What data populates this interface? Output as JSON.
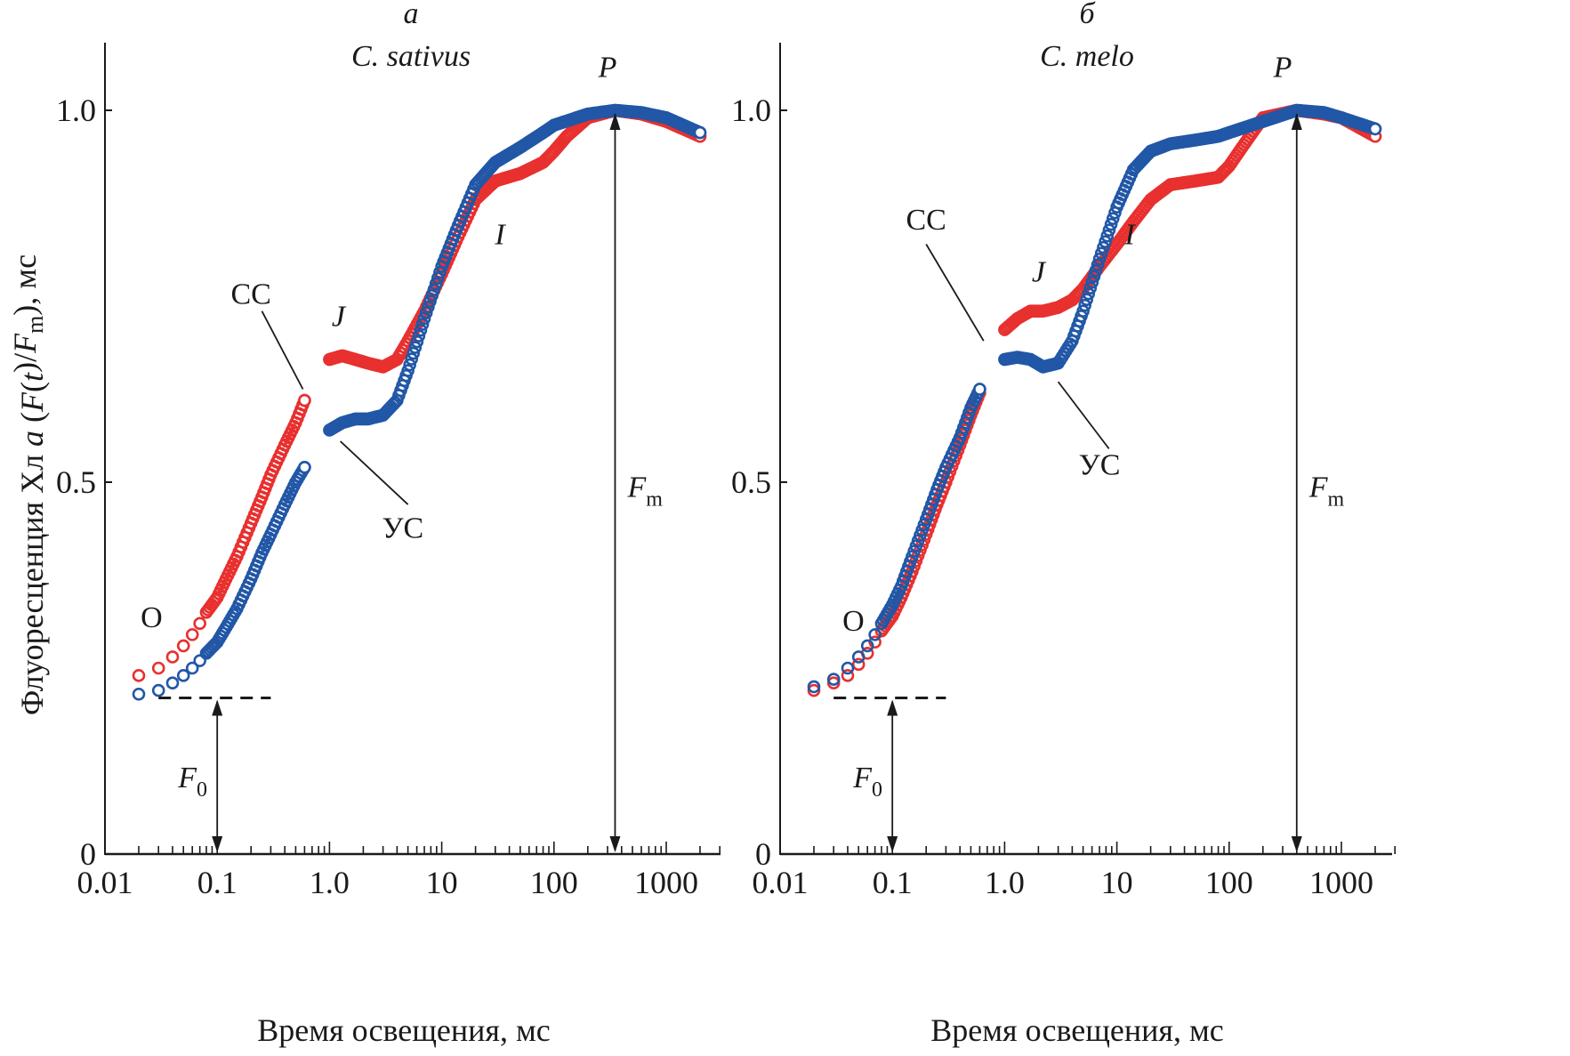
{
  "chart_data": [
    {
      "type": "scatter",
      "panel_letter": "а",
      "title": "C. sativus",
      "xlabel": "Время освещения, мс",
      "ylabel": "Флуоресценция Хл a (F(t)/Fm), мс",
      "xscale": "log",
      "xlim": [
        0.01,
        3000
      ],
      "ylim": [
        0,
        1.1
      ],
      "xticks": [
        0.01,
        0.1,
        1.0,
        10,
        100,
        1000
      ],
      "xtick_labels": [
        "0.01",
        "0.1",
        "1.0",
        "10",
        "100",
        "1000"
      ],
      "yticks": [
        0,
        0.5,
        1.0
      ],
      "ytick_labels": [
        "0",
        "0.5",
        "1.0"
      ],
      "grid": false,
      "annotations": {
        "O": "O",
        "J": "J",
        "I": "I",
        "P": "P",
        "CC": "СС",
        "US": "УС",
        "F0": "F",
        "F0_sub": "0",
        "Fm": "F",
        "Fm_sub": "m"
      },
      "F0_level": 0.21,
      "Fm_time": 350,
      "series": [
        {
          "name": "СС",
          "color": "#e8302f",
          "points": [
            [
              0.02,
              0.24
            ],
            [
              0.03,
              0.25
            ],
            [
              0.04,
              0.265
            ],
            [
              0.05,
              0.28
            ],
            [
              0.06,
              0.295
            ],
            [
              0.07,
              0.31
            ],
            [
              0.08,
              0.325
            ],
            [
              0.1,
              0.345
            ],
            [
              0.12,
              0.37
            ],
            [
              0.15,
              0.4
            ],
            [
              0.2,
              0.445
            ],
            [
              0.25,
              0.48
            ],
            [
              0.3,
              0.51
            ],
            [
              0.4,
              0.55
            ],
            [
              0.5,
              0.58
            ],
            [
              0.6,
              0.61
            ],
            [
              1.0,
              0.665
            ],
            [
              1.3,
              0.67
            ],
            [
              1.7,
              0.665
            ],
            [
              2.2,
              0.66
            ],
            [
              3,
              0.655
            ],
            [
              4,
              0.665
            ],
            [
              5,
              0.69
            ],
            [
              7,
              0.73
            ],
            [
              10,
              0.78
            ],
            [
              14,
              0.83
            ],
            [
              20,
              0.88
            ],
            [
              30,
              0.905
            ],
            [
              50,
              0.915
            ],
            [
              80,
              0.93
            ],
            [
              100,
              0.945
            ],
            [
              130,
              0.965
            ],
            [
              200,
              0.99
            ],
            [
              350,
              1.0
            ],
            [
              600,
              0.995
            ],
            [
              1000,
              0.985
            ],
            [
              2000,
              0.965
            ]
          ]
        },
        {
          "name": "УС",
          "color": "#2157a6",
          "points": [
            [
              0.02,
              0.215
            ],
            [
              0.03,
              0.22
            ],
            [
              0.04,
              0.23
            ],
            [
              0.05,
              0.24
            ],
            [
              0.06,
              0.25
            ],
            [
              0.07,
              0.26
            ],
            [
              0.08,
              0.27
            ],
            [
              0.1,
              0.285
            ],
            [
              0.12,
              0.305
            ],
            [
              0.15,
              0.33
            ],
            [
              0.2,
              0.37
            ],
            [
              0.25,
              0.405
            ],
            [
              0.3,
              0.43
            ],
            [
              0.4,
              0.47
            ],
            [
              0.5,
              0.5
            ],
            [
              0.6,
              0.52
            ],
            [
              1.0,
              0.57
            ],
            [
              1.3,
              0.58
            ],
            [
              1.7,
              0.585
            ],
            [
              2.2,
              0.585
            ],
            [
              3,
              0.59
            ],
            [
              4,
              0.61
            ],
            [
              5,
              0.65
            ],
            [
              7,
              0.72
            ],
            [
              10,
              0.79
            ],
            [
              14,
              0.845
            ],
            [
              20,
              0.9
            ],
            [
              30,
              0.93
            ],
            [
              50,
              0.95
            ],
            [
              80,
              0.97
            ],
            [
              100,
              0.98
            ],
            [
              200,
              0.995
            ],
            [
              350,
              1.0
            ],
            [
              600,
              0.997
            ],
            [
              1000,
              0.99
            ],
            [
              2000,
              0.97
            ]
          ]
        }
      ]
    },
    {
      "type": "scatter",
      "panel_letter": "б",
      "title": "C. melo",
      "xlabel": "Время освещения, мс",
      "ylabel": "",
      "xscale": "log",
      "xlim": [
        0.01,
        3000
      ],
      "ylim": [
        0,
        1.1
      ],
      "xticks": [
        0.01,
        0.1,
        1.0,
        10,
        100,
        1000
      ],
      "xtick_labels": [
        "0.01",
        "0.1",
        "1.0",
        "10",
        "100",
        "1000"
      ],
      "yticks": [
        0,
        0.5,
        1.0
      ],
      "ytick_labels": [
        "0",
        "0.5",
        "1.0"
      ],
      "grid": false,
      "annotations": {
        "O": "O",
        "J": "J",
        "I": "I",
        "P": "P",
        "CC": "СС",
        "US": "УС",
        "F0": "F",
        "F0_sub": "0",
        "Fm": "F",
        "Fm_sub": "m"
      },
      "F0_level": 0.21,
      "Fm_time": 400,
      "series": [
        {
          "name": "СС",
          "color": "#e8302f",
          "points": [
            [
              0.02,
              0.22
            ],
            [
              0.03,
              0.23
            ],
            [
              0.04,
              0.24
            ],
            [
              0.05,
              0.255
            ],
            [
              0.06,
              0.27
            ],
            [
              0.07,
              0.285
            ],
            [
              0.08,
              0.3
            ],
            [
              0.1,
              0.32
            ],
            [
              0.12,
              0.345
            ],
            [
              0.15,
              0.38
            ],
            [
              0.2,
              0.43
            ],
            [
              0.25,
              0.47
            ],
            [
              0.3,
              0.5
            ],
            [
              0.4,
              0.55
            ],
            [
              0.5,
              0.59
            ],
            [
              0.6,
              0.62
            ],
            [
              1.0,
              0.705
            ],
            [
              1.3,
              0.72
            ],
            [
              1.7,
              0.73
            ],
            [
              2.2,
              0.73
            ],
            [
              3,
              0.735
            ],
            [
              4,
              0.745
            ],
            [
              5,
              0.76
            ],
            [
              7,
              0.79
            ],
            [
              10,
              0.82
            ],
            [
              14,
              0.85
            ],
            [
              20,
              0.88
            ],
            [
              30,
              0.9
            ],
            [
              50,
              0.905
            ],
            [
              80,
              0.91
            ],
            [
              100,
              0.925
            ],
            [
              130,
              0.95
            ],
            [
              200,
              0.99
            ],
            [
              400,
              1.0
            ],
            [
              700,
              0.995
            ],
            [
              1000,
              0.99
            ],
            [
              2000,
              0.965
            ]
          ]
        },
        {
          "name": "УС",
          "color": "#2157a6",
          "points": [
            [
              0.02,
              0.225
            ],
            [
              0.03,
              0.235
            ],
            [
              0.04,
              0.25
            ],
            [
              0.05,
              0.265
            ],
            [
              0.06,
              0.28
            ],
            [
              0.07,
              0.295
            ],
            [
              0.08,
              0.31
            ],
            [
              0.1,
              0.335
            ],
            [
              0.12,
              0.36
            ],
            [
              0.15,
              0.4
            ],
            [
              0.2,
              0.45
            ],
            [
              0.25,
              0.49
            ],
            [
              0.3,
              0.52
            ],
            [
              0.4,
              0.56
            ],
            [
              0.5,
              0.6
            ],
            [
              0.6,
              0.625
            ],
            [
              1.0,
              0.665
            ],
            [
              1.3,
              0.668
            ],
            [
              1.7,
              0.665
            ],
            [
              2.2,
              0.655
            ],
            [
              3,
              0.66
            ],
            [
              4,
              0.69
            ],
            [
              5,
              0.73
            ],
            [
              7,
              0.8
            ],
            [
              10,
              0.87
            ],
            [
              14,
              0.92
            ],
            [
              20,
              0.945
            ],
            [
              30,
              0.955
            ],
            [
              50,
              0.96
            ],
            [
              80,
              0.965
            ],
            [
              100,
              0.97
            ],
            [
              200,
              0.985
            ],
            [
              400,
              1.0
            ],
            [
              700,
              0.997
            ],
            [
              1000,
              0.99
            ],
            [
              2000,
              0.975
            ]
          ]
        }
      ]
    }
  ]
}
